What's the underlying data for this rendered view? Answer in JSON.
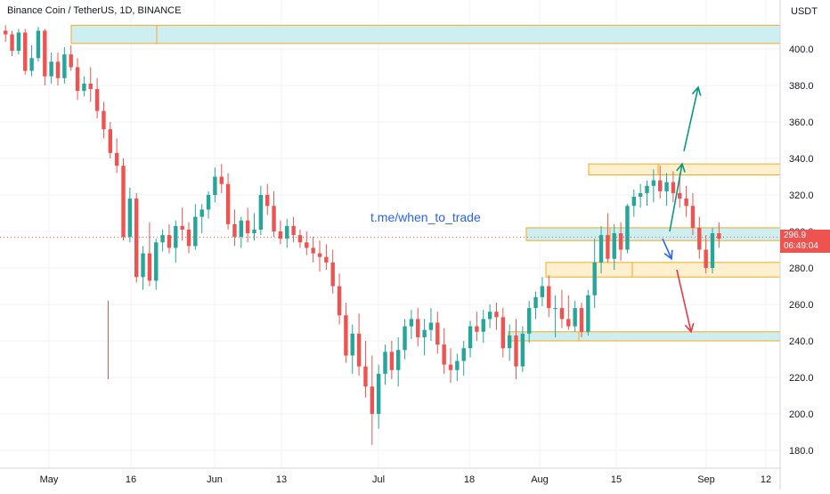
{
  "header": {
    "title": "Binance Coin / TetherUS, 1D, BINANCE",
    "currency": "USDT"
  },
  "watermark": "t.me/when_to_trade",
  "last_price": {
    "value": "296.9",
    "countdown": "06:49:04"
  },
  "colors": {
    "up": "#26a69a",
    "down": "#ef5350",
    "zone_blue_fill": "#cdeff2",
    "zone_orange_fill": "#fdf0cf",
    "zone_border": "#f7a820",
    "arrow_green": "#089981",
    "arrow_red": "#f23645",
    "arrow_blue": "#2962ff"
  },
  "chart_data": {
    "type": "candlestick",
    "title": "Binance Coin / TetherUS, 1D, BINANCE",
    "x_axis_labels": [
      "May",
      "16",
      "Jun",
      "13",
      "Jul",
      "18",
      "Aug",
      "15",
      "Sep",
      "12"
    ],
    "y_axis_ticks": [
      "400.0",
      "380.0",
      "360.0",
      "340.0",
      "320.0",
      "300.0",
      "280.0",
      "260.0",
      "240.0",
      "220.0",
      "200.0",
      "180.0"
    ],
    "ylim": [
      173,
      417
    ],
    "grid": true,
    "candles": [
      [
        410,
        413,
        404,
        408
      ],
      [
        408,
        410,
        396,
        399
      ],
      [
        399,
        411,
        397,
        409
      ],
      [
        409,
        411,
        386,
        388
      ],
      [
        388,
        402,
        385,
        395
      ],
      [
        395,
        412,
        393,
        410
      ],
      [
        410,
        411,
        380,
        385
      ],
      [
        385,
        398,
        381,
        393
      ],
      [
        393,
        398,
        380,
        384
      ],
      [
        384,
        401,
        381,
        397
      ],
      [
        397,
        402,
        388,
        390
      ],
      [
        390,
        395,
        372,
        377
      ],
      [
        377,
        385,
        374,
        381
      ],
      [
        381,
        390,
        371,
        378
      ],
      [
        378,
        384,
        362,
        366
      ],
      [
        366,
        371,
        351,
        356
      ],
      [
        356,
        360,
        340,
        343
      ],
      [
        343,
        351,
        332,
        336
      ],
      [
        336,
        340,
        295,
        297
      ],
      [
        297,
        324,
        294,
        318
      ],
      [
        318,
        321,
        272,
        275
      ],
      [
        275,
        292,
        268,
        288
      ],
      [
        288,
        305,
        270,
        273
      ],
      [
        273,
        296,
        268,
        294
      ],
      [
        294,
        301,
        289,
        298
      ],
      [
        298,
        304,
        288,
        291
      ],
      [
        291,
        306,
        283,
        303
      ],
      [
        303,
        313,
        295,
        301
      ],
      [
        301,
        305,
        288,
        292
      ],
      [
        292,
        315,
        290,
        308
      ],
      [
        308,
        315,
        299,
        312
      ],
      [
        312,
        322,
        307,
        320
      ],
      [
        320,
        335,
        316,
        330
      ],
      [
        330,
        337,
        321,
        326
      ],
      [
        326,
        332,
        301,
        304
      ],
      [
        304,
        312,
        292,
        297
      ],
      [
        297,
        308,
        291,
        306
      ],
      [
        306,
        313,
        294,
        299
      ],
      [
        299,
        310,
        295,
        301
      ],
      [
        301,
        325,
        298,
        320
      ],
      [
        320,
        326,
        309,
        314
      ],
      [
        314,
        322,
        297,
        300
      ],
      [
        300,
        306,
        293,
        296
      ],
      [
        296,
        307,
        291,
        303
      ],
      [
        303,
        308,
        294,
        298
      ],
      [
        298,
        301,
        291,
        294
      ],
      [
        294,
        300,
        287,
        291
      ],
      [
        291,
        297,
        283,
        288
      ],
      [
        288,
        295,
        278,
        286
      ],
      [
        286,
        293,
        279,
        283
      ],
      [
        283,
        290,
        266,
        270
      ],
      [
        270,
        277,
        249,
        254
      ],
      [
        254,
        261,
        228,
        232
      ],
      [
        232,
        249,
        222,
        244
      ],
      [
        244,
        255,
        221,
        226
      ],
      [
        226,
        240,
        209,
        215
      ],
      [
        215,
        232,
        183,
        200
      ],
      [
        200,
        227,
        192,
        222
      ],
      [
        222,
        238,
        216,
        234
      ],
      [
        234,
        240,
        219,
        224
      ],
      [
        224,
        242,
        215,
        235
      ],
      [
        235,
        252,
        230,
        248
      ],
      [
        248,
        257,
        241,
        252
      ],
      [
        252,
        258,
        237,
        242
      ],
      [
        242,
        252,
        232,
        246
      ],
      [
        246,
        258,
        240,
        250
      ],
      [
        250,
        256,
        233,
        238
      ],
      [
        238,
        247,
        222,
        227
      ],
      [
        227,
        236,
        217,
        224
      ],
      [
        224,
        233,
        218,
        229
      ],
      [
        229,
        240,
        221,
        236
      ],
      [
        236,
        251,
        231,
        248
      ],
      [
        248,
        256,
        240,
        245
      ],
      [
        245,
        257,
        239,
        252
      ],
      [
        252,
        260,
        247,
        256
      ],
      [
        256,
        261,
        246,
        253
      ],
      [
        253,
        258,
        231,
        236
      ],
      [
        236,
        249,
        229,
        243
      ],
      [
        243,
        252,
        219,
        226
      ],
      [
        226,
        248,
        223,
        244
      ],
      [
        244,
        262,
        239,
        258
      ],
      [
        258,
        267,
        252,
        264
      ],
      [
        264,
        275,
        259,
        270
      ],
      [
        270,
        276,
        253,
        258
      ],
      [
        258,
        265,
        242,
        258
      ],
      [
        258,
        268,
        247,
        252
      ],
      [
        252,
        265,
        246,
        248
      ],
      [
        248,
        262,
        245,
        258
      ],
      [
        258,
        261,
        242,
        245
      ],
      [
        245,
        268,
        243,
        265
      ],
      [
        265,
        296,
        258,
        283
      ],
      [
        283,
        303,
        277,
        298
      ],
      [
        298,
        310,
        283,
        285
      ],
      [
        285,
        304,
        279,
        299
      ],
      [
        299,
        305,
        284,
        290
      ],
      [
        290,
        315,
        288,
        314
      ],
      [
        314,
        323,
        308,
        319
      ],
      [
        319,
        326,
        313,
        321
      ],
      [
        321,
        328,
        314,
        325
      ],
      [
        325,
        334,
        316,
        328
      ],
      [
        328,
        336,
        318,
        322
      ],
      [
        322,
        332,
        314,
        327
      ],
      [
        327,
        333,
        316,
        321
      ],
      [
        321,
        332,
        313,
        318
      ],
      [
        318,
        325,
        308,
        314
      ],
      [
        314,
        321,
        298,
        302
      ],
      [
        302,
        308,
        285,
        290
      ],
      [
        290,
        298,
        277,
        280
      ],
      [
        280,
        302,
        277,
        299
      ],
      [
        299,
        305,
        291,
        296
      ]
    ],
    "zones": [
      {
        "name": "resistance-top",
        "y_low": 403,
        "y_high": 413,
        "style": "blue"
      },
      {
        "name": "resistance-mid",
        "y_low": 331,
        "y_high": 337,
        "style": "orange"
      },
      {
        "name": "current-range",
        "y_low": 295,
        "y_high": 302,
        "style": "blue"
      },
      {
        "name": "support-mid",
        "y_low": 275,
        "y_high": 283,
        "style": "orange"
      },
      {
        "name": "support-low",
        "y_low": 240,
        "y_high": 245,
        "style": "blue"
      }
    ],
    "arrows": [
      {
        "name": "arrow-up-green-1",
        "from_y": 300,
        "to_y": 337,
        "color": "green"
      },
      {
        "name": "arrow-up-green-2",
        "from_y": 344,
        "to_y": 379,
        "color": "green"
      },
      {
        "name": "arrow-down-blue",
        "from_y": 296,
        "to_y": 285,
        "color": "blue"
      },
      {
        "name": "arrow-down-red",
        "from_y": 279,
        "to_y": 245,
        "color": "red"
      }
    ],
    "last_price_line": 296.9
  }
}
